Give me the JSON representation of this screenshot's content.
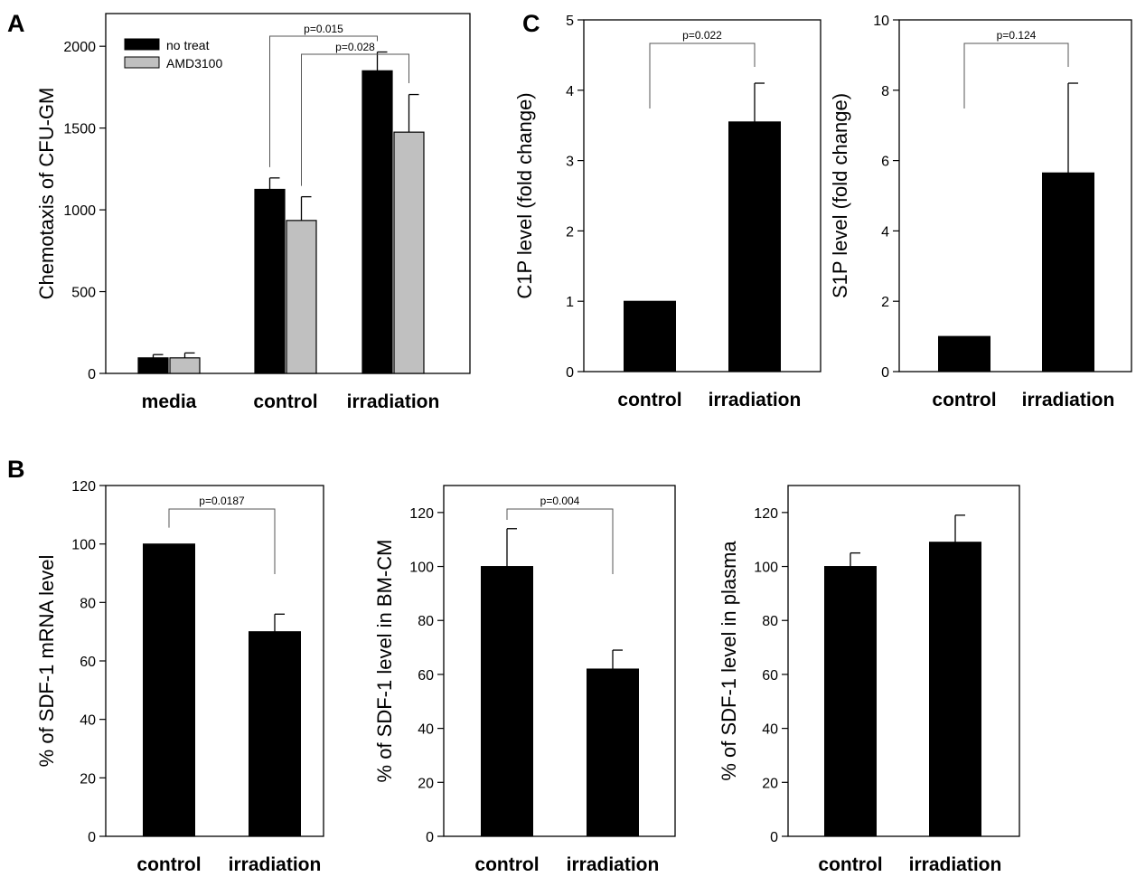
{
  "panels": [
    {
      "letter": "A"
    },
    {
      "letter": "B"
    },
    {
      "letter": "C"
    }
  ],
  "colors": {
    "no_treat": "#000000",
    "amd3100": "#c0c0c0",
    "axis": "#000000"
  },
  "chart_data": [
    {
      "id": "A",
      "type": "bar",
      "ylabel": "Chemotaxis of CFU-GM",
      "ylim": [
        0,
        2200
      ],
      "yticks": [
        0,
        500,
        1000,
        1500,
        2000
      ],
      "categories": [
        "media",
        "control",
        "irradiation"
      ],
      "legend": {
        "position": "top-left"
      },
      "series": [
        {
          "name": "no treat",
          "color": "#000000",
          "values": [
            95,
            1125,
            1850
          ],
          "errors": [
            20,
            70,
            115
          ]
        },
        {
          "name": "AMD3100",
          "color": "#c0c0c0",
          "values": [
            95,
            935,
            1475
          ],
          "errors": [
            30,
            145,
            230
          ]
        }
      ],
      "annotations": [
        {
          "text": "p=0.015",
          "from": [
            1,
            0
          ],
          "to": [
            2,
            0
          ]
        },
        {
          "text": "p=0.028",
          "from": [
            1,
            1
          ],
          "to": [
            2,
            1
          ]
        }
      ]
    },
    {
      "id": "C1",
      "type": "bar",
      "ylabel": "C1P level (fold change)",
      "ylim": [
        0,
        5
      ],
      "yticks": [
        0,
        1,
        2,
        3,
        4,
        5
      ],
      "categories": [
        "control",
        "irradiation"
      ],
      "values": [
        1.0,
        3.55
      ],
      "errors": [
        0,
        0.55
      ],
      "annotations": [
        {
          "text": "p=0.022",
          "from": 0,
          "to": 1
        }
      ]
    },
    {
      "id": "C2",
      "type": "bar",
      "ylabel": "S1P level (fold change)",
      "ylim": [
        0,
        10
      ],
      "yticks": [
        0,
        2,
        4,
        6,
        8,
        10
      ],
      "categories": [
        "control",
        "irradiation"
      ],
      "values": [
        1.0,
        5.65
      ],
      "errors": [
        0,
        2.55
      ],
      "annotations": [
        {
          "text": "p=0.124",
          "from": 0,
          "to": 1
        }
      ]
    },
    {
      "id": "B1",
      "type": "bar",
      "ylabel": "% of SDF-1 mRNA level",
      "ylim": [
        0,
        120
      ],
      "yticks": [
        0,
        20,
        40,
        60,
        80,
        100,
        120
      ],
      "categories": [
        "control",
        "irradiation"
      ],
      "values": [
        100,
        70
      ],
      "errors": [
        0,
        6
      ],
      "annotations": [
        {
          "text": "p=0.0187",
          "from": 0,
          "to": 1
        }
      ]
    },
    {
      "id": "B2",
      "type": "bar",
      "ylabel": "% of SDF-1 level in BM-CM",
      "ylim": [
        0,
        130
      ],
      "yticks": [
        0,
        20,
        40,
        60,
        80,
        100,
        120
      ],
      "categories": [
        "control",
        "irradiation"
      ],
      "values": [
        100,
        62
      ],
      "errors": [
        14,
        7
      ],
      "annotations": [
        {
          "text": "p=0.004",
          "from": 0,
          "to": 1
        }
      ]
    },
    {
      "id": "B3",
      "type": "bar",
      "ylabel": "% of SDF-1 level in plasma",
      "ylim": [
        0,
        130
      ],
      "yticks": [
        0,
        20,
        40,
        60,
        80,
        100,
        120
      ],
      "categories": [
        "control",
        "irradiation"
      ],
      "values": [
        100,
        109
      ],
      "errors": [
        5,
        10
      ],
      "annotations": []
    }
  ]
}
